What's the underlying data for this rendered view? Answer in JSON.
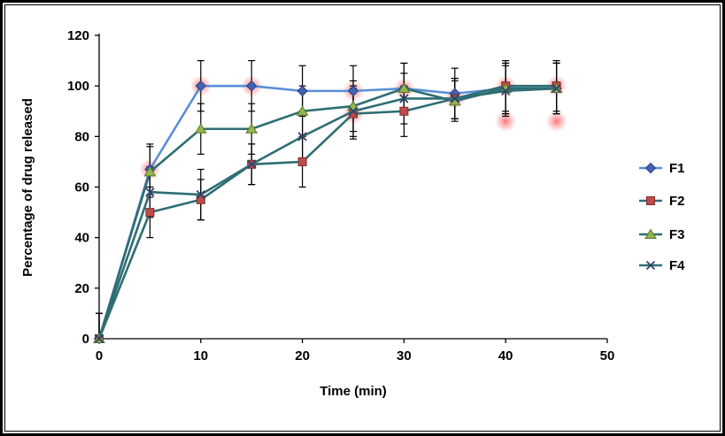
{
  "chart_data": {
    "type": "line",
    "title": "",
    "xlabel": "Time (min)",
    "ylabel": "Percentage of drug released",
    "x": [
      0,
      5,
      10,
      15,
      20,
      25,
      30,
      35,
      40,
      45
    ],
    "xlim": [
      0,
      50
    ],
    "ylim": [
      0,
      120
    ],
    "xticks": [
      0,
      10,
      20,
      30,
      40,
      50
    ],
    "yticks": [
      0,
      20,
      40,
      60,
      80,
      100,
      120
    ],
    "grid": false,
    "legend_position": "right",
    "series": [
      {
        "name": "F1",
        "marker": "diamond",
        "line_color": "#5b8ed6",
        "marker_color": "#4163b1",
        "marker_edge": "#2c3f85",
        "values": [
          0,
          67,
          100,
          100,
          98,
          98,
          99,
          97,
          99,
          99
        ],
        "errors": [
          10,
          10,
          10,
          10,
          10,
          10,
          10,
          10,
          10,
          10
        ]
      },
      {
        "name": "F2",
        "marker": "square",
        "line_color": "#2e6e73",
        "marker_color": "#bf4b49",
        "marker_edge": "#7c2f2e",
        "values": [
          0,
          50,
          55,
          69,
          70,
          89,
          90,
          95,
          100,
          100
        ],
        "errors": [
          10,
          10,
          8,
          8,
          10,
          10,
          10,
          8,
          10,
          10
        ]
      },
      {
        "name": "F3",
        "marker": "triangle",
        "line_color": "#2e6e73",
        "marker_color": "#94b54d",
        "marker_edge": "#5a7a2e",
        "values": [
          0,
          66,
          83,
          83,
          90,
          92,
          99,
          94,
          99,
          99
        ],
        "errors": [
          10,
          10,
          10,
          10,
          10,
          10,
          10,
          8,
          10,
          10
        ]
      },
      {
        "name": "F4",
        "marker": "x",
        "line_color": "#2e6e73",
        "marker_color": "#31406b",
        "marker_edge": "#31406b",
        "values": [
          0,
          58,
          57,
          69,
          80,
          90,
          95,
          95,
          98,
          99
        ],
        "errors": [
          10,
          10,
          10,
          8,
          10,
          10,
          10,
          8,
          10,
          10
        ]
      }
    ],
    "glow_color": "#ff5a5a",
    "glow_points": [
      {
        "x": 5,
        "y": 67
      },
      {
        "x": 10,
        "y": 100
      },
      {
        "x": 15,
        "y": 100
      },
      {
        "x": 25,
        "y": 89
      },
      {
        "x": 25,
        "y": 98
      },
      {
        "x": 30,
        "y": 99
      },
      {
        "x": 35,
        "y": 95
      },
      {
        "x": 40,
        "y": 100
      },
      {
        "x": 40,
        "y": 86
      },
      {
        "x": 45,
        "y": 100
      },
      {
        "x": 45,
        "y": 86
      }
    ]
  }
}
